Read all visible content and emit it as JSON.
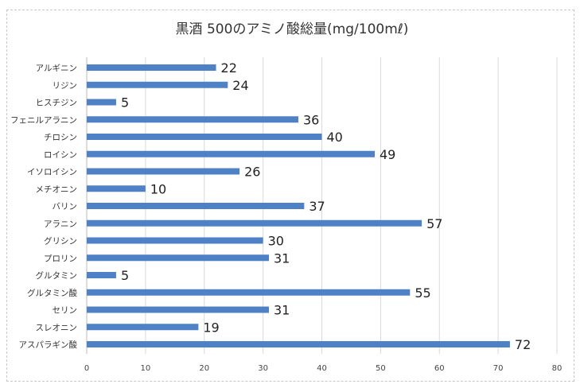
{
  "chart_data": {
    "type": "bar",
    "orientation": "horizontal",
    "title": "黒酒 500のアミノ酸総量(mg/100mℓ)",
    "xlabel": "",
    "ylabel": "",
    "categories": [
      "アルギニン",
      "リジン",
      "ヒスチジン",
      "フェニルアラニン",
      "チロシン",
      "ロイシン",
      "イソロイシン",
      "メチオニン",
      "バリン",
      "アラニン",
      "グリシン",
      "プロリン",
      "グルタミン",
      "グルタミン酸",
      "セリン",
      "スレオニン",
      "アスパラギン酸"
    ],
    "values": [
      22,
      24,
      5,
      36,
      40,
      49,
      26,
      10,
      37,
      57,
      30,
      31,
      5,
      55,
      31,
      19,
      72
    ],
    "xlim": [
      0,
      80
    ],
    "xticks": [
      0,
      10,
      20,
      30,
      40,
      50,
      60,
      70,
      80
    ],
    "grid": true,
    "legend": "none",
    "bar_color": "#4f81c7"
  }
}
